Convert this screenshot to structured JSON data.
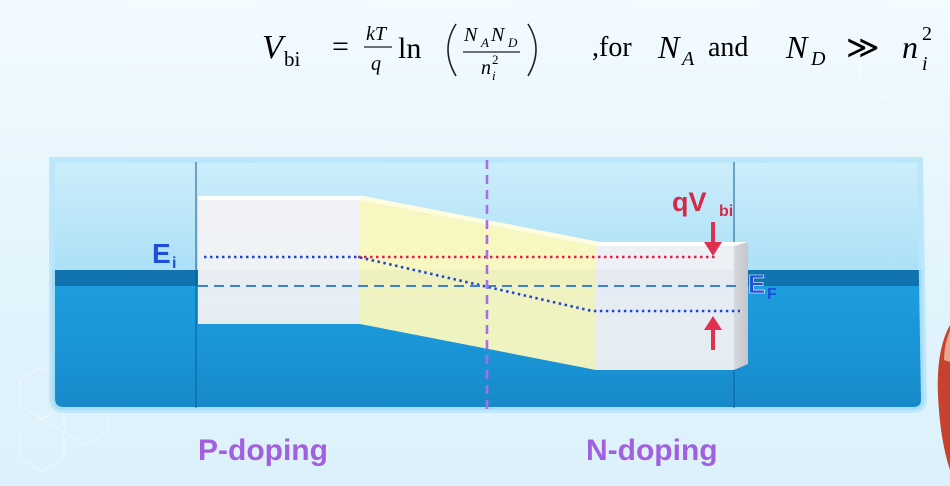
{
  "formula": {
    "lhs_main": "V",
    "lhs_sub": "bi",
    "equals": "=",
    "frac1_num": "kT",
    "frac1_den": "q",
    "ln": "ln",
    "frac2_num_a": "N",
    "frac2_num_a_sub": "A",
    "frac2_num_b": "N",
    "frac2_num_b_sub": "D",
    "frac2_den": "n",
    "frac2_den_sup": "2",
    "frac2_den_sub": "i",
    "condition_prefix": ",for",
    "cond_na": "N",
    "cond_na_sub": "A",
    "cond_and": "and",
    "cond_nd": "N",
    "cond_nd_sub": "D",
    "cond_op": "≫",
    "cond_n": "n",
    "cond_n_sup": "2",
    "cond_n_sub": "i"
  },
  "labels": {
    "ei_main": "E",
    "ei_sub": "i",
    "ef_main": "E",
    "ef_sub": "F",
    "qvbi_main": "qV",
    "qvbi_sub": "bi",
    "p_doping": "P-doping",
    "n_doping": "N-doping"
  },
  "colors": {
    "water": "#1a98d8",
    "water_dark": "#0f6fa8",
    "block_face": "#f1f1f3",
    "depletion_face": "#fbf9c0",
    "ei_line": "#2245d0",
    "ef_line": "#3d7fe0",
    "red_line": "#e0204a",
    "arrow": "#e03050",
    "junction": "#a96ee6",
    "label_blue": "#1f4fd8",
    "label_red": "#d42a4a",
    "label_purple": "#a25fe0"
  }
}
